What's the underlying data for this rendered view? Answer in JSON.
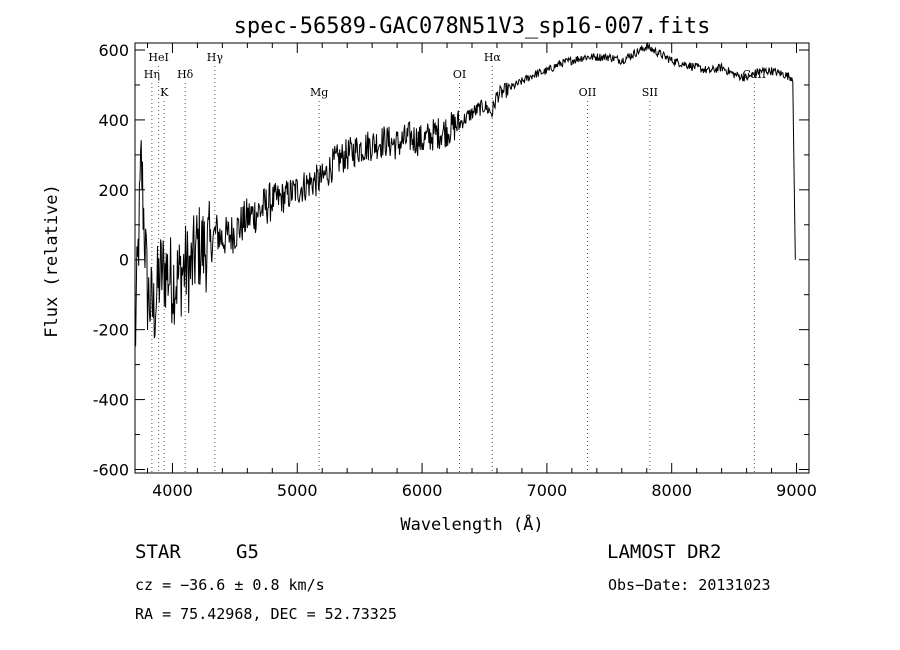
{
  "chart_data": {
    "type": "line",
    "title": "spec-56589-GAC078N51V3_sp16-007.fits",
    "xlabel": "Wavelength (Å)",
    "ylabel": "Flux (relative)",
    "xlim": [
      3700,
      9100
    ],
    "ylim": [
      -610,
      620
    ],
    "xticks": [
      4000,
      5000,
      6000,
      7000,
      8000,
      9000
    ],
    "yticks": [
      -600,
      -400,
      -200,
      0,
      200,
      400,
      600
    ],
    "grid": false,
    "series": [
      {
        "x": [
          3700,
          3750,
          3800,
          3850,
          3900,
          3950,
          4000,
          4050,
          4100,
          4150,
          4200,
          4250,
          4300,
          4350,
          4400,
          4500,
          4600,
          4700,
          4800,
          4900,
          5000,
          5100,
          5200,
          5300,
          5400,
          5500,
          5600,
          5700,
          5800,
          5900,
          6000,
          6100,
          6200,
          6300,
          6400,
          6500,
          6560,
          6600,
          6700,
          6800,
          6900,
          7000,
          7100,
          7200,
          7300,
          7400,
          7500,
          7600,
          7700,
          7800,
          7900,
          8000,
          8100,
          8200,
          8300,
          8400,
          8500,
          8600,
          8700,
          8800,
          8900,
          8970,
          8990
        ],
        "y": [
          -250,
          280,
          -100,
          -150,
          -40,
          -30,
          -60,
          -50,
          -20,
          -30,
          40,
          30,
          40,
          80,
          60,
          80,
          120,
          140,
          170,
          180,
          200,
          220,
          230,
          280,
          300,
          320,
          330,
          340,
          330,
          350,
          340,
          360,
          370,
          390,
          420,
          440,
          420,
          470,
          490,
          510,
          530,
          540,
          560,
          570,
          580,
          580,
          580,
          570,
          590,
          610,
          590,
          570,
          560,
          550,
          540,
          550,
          530,
          520,
          540,
          540,
          530,
          520,
          0
        ]
      }
    ],
    "annotations": [
      {
        "label": "Hη",
        "x": 3835,
        "row": 2
      },
      {
        "label": "HeI",
        "x": 3889,
        "row": 1
      },
      {
        "label": "K",
        "x": 3934,
        "row": 3
      },
      {
        "label": "Hδ",
        "x": 4102,
        "row": 2
      },
      {
        "label": "Hγ",
        "x": 4340,
        "row": 1
      },
      {
        "label": "Mg",
        "x": 5175,
        "row": 3
      },
      {
        "label": "OI",
        "x": 6300,
        "row": 2
      },
      {
        "label": "Hα",
        "x": 6563,
        "row": 1
      },
      {
        "label": "OII",
        "x": 7325,
        "row": 3
      },
      {
        "label": "SII",
        "x": 7825,
        "row": 3
      },
      {
        "label": "CaII",
        "x": 8662,
        "row": 2
      }
    ]
  },
  "info": {
    "obj_class": "STAR",
    "subclass": "G5",
    "survey": "LAMOST DR2",
    "cz": "cz = −36.6 ± 0.8 km/s",
    "obs_date": "Obs−Date: 20131023",
    "coords": "RA =  75.42968, DEC =  52.73325"
  }
}
